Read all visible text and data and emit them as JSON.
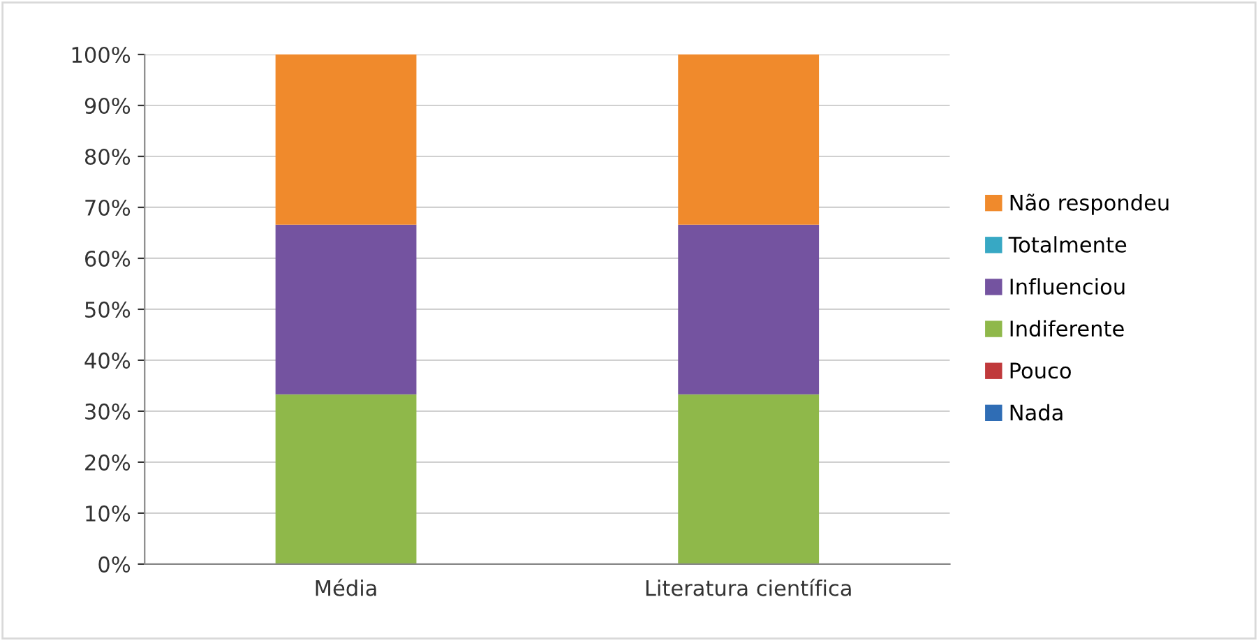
{
  "chart_data": {
    "type": "bar",
    "stacked": true,
    "categories": [
      "Média",
      "Literatura científica"
    ],
    "series": [
      {
        "name": "Nada",
        "color": "#2f6db5",
        "values": [
          0,
          0
        ]
      },
      {
        "name": "Pouco",
        "color": "#c0393b",
        "values": [
          0,
          0
        ]
      },
      {
        "name": "Indiferente",
        "color": "#8fb84a",
        "values": [
          33.3,
          33.3
        ]
      },
      {
        "name": "Influenciou",
        "color": "#7453a0",
        "values": [
          33.3,
          33.3
        ]
      },
      {
        "name": "Totalmente",
        "color": "#37a8c4",
        "values": [
          0,
          0
        ]
      },
      {
        "name": "Não respondeu",
        "color": "#f08a2c",
        "values": [
          33.4,
          33.4
        ]
      }
    ],
    "ylim": [
      0,
      100
    ],
    "yticks": [
      {
        "value": 0,
        "label": "0%"
      },
      {
        "value": 10,
        "label": "10%"
      },
      {
        "value": 20,
        "label": "20%"
      },
      {
        "value": 30,
        "label": "30%"
      },
      {
        "value": 40,
        "label": "40%"
      },
      {
        "value": 50,
        "label": "50%"
      },
      {
        "value": 60,
        "label": "60%"
      },
      {
        "value": 70,
        "label": "70%"
      },
      {
        "value": 80,
        "label": "80%"
      },
      {
        "value": 90,
        "label": "90%"
      },
      {
        "value": 100,
        "label": "100%"
      }
    ],
    "grid": "y",
    "legend": "right"
  }
}
